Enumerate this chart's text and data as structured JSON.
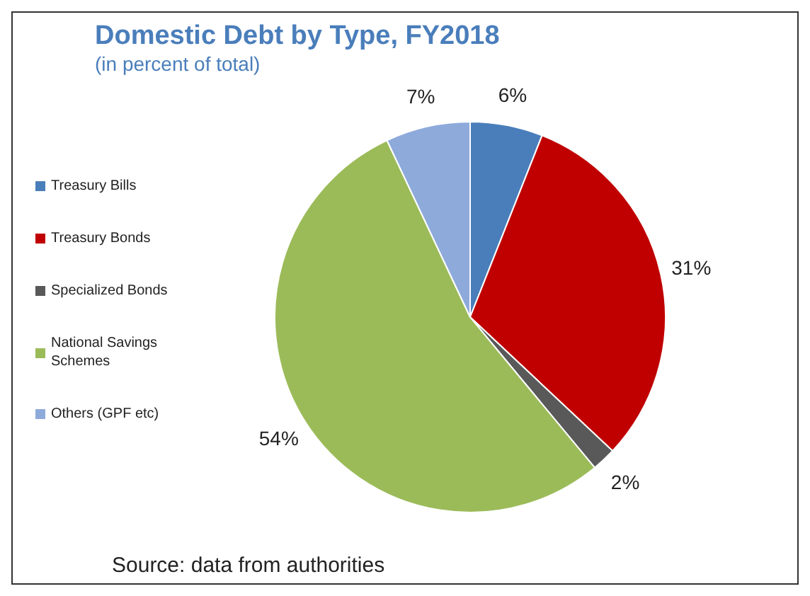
{
  "chart_data": {
    "type": "pie",
    "title": "Domestic Debt by Type, FY2018",
    "subtitle": "(in percent of total)",
    "categories": [
      "Treasury Bills",
      "Treasury Bonds",
      "Specialized Bonds",
      "National Savings Schemes",
      "Others (GPF etc)"
    ],
    "values": [
      6,
      31,
      2,
      54,
      7
    ],
    "value_labels": [
      "6%",
      "31%",
      "2%",
      "54%",
      "7%"
    ],
    "colors": [
      "#4a7ebb",
      "#c00000",
      "#595959",
      "#9bbb59",
      "#8eaadb"
    ],
    "legend": "left",
    "annotations": [
      "Source: data from authorities"
    ]
  }
}
